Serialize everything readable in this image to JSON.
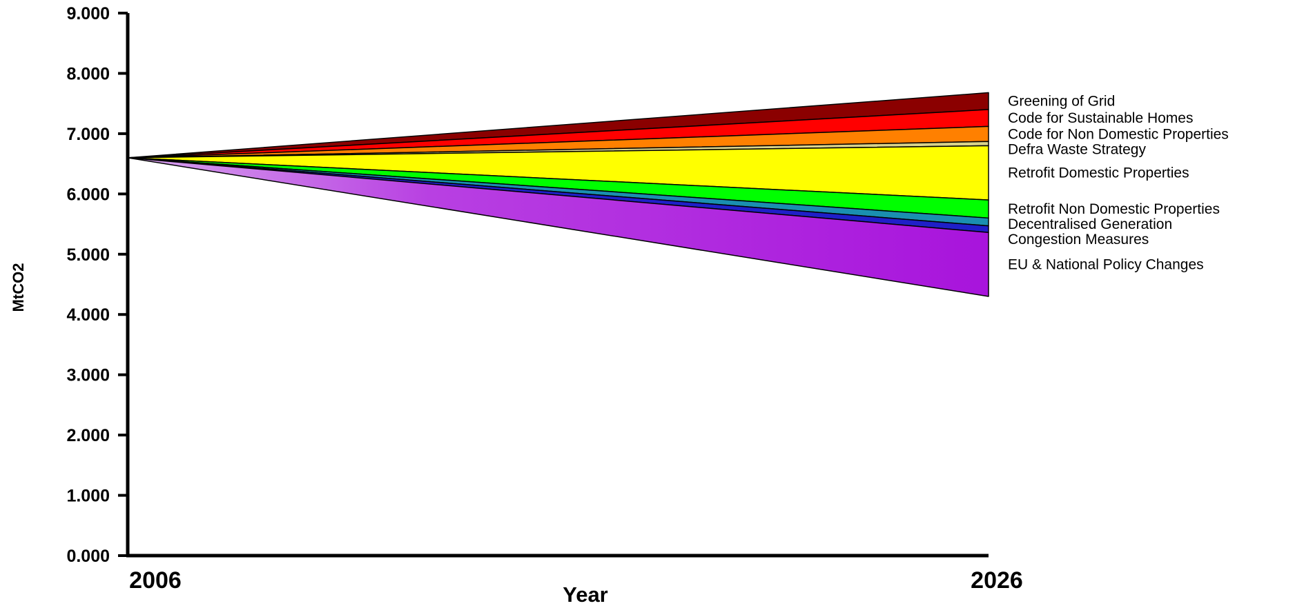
{
  "chart_data": {
    "type": "area",
    "xlabel": "Year",
    "ylabel": "MtCO2",
    "x": [
      2006,
      2026
    ],
    "x_tick_labels": [
      "2006",
      "2026"
    ],
    "ylim": [
      0,
      9
    ],
    "y_ticks": [
      0,
      1,
      2,
      3,
      4,
      5,
      6,
      7,
      8,
      9
    ],
    "y_tick_labels": [
      "0.000",
      "1.000",
      "2.000",
      "3.000",
      "4.000",
      "5.000",
      "6.000",
      "7.000",
      "8.000",
      "9.000"
    ],
    "grid": false,
    "legend": "labels at right end of each band",
    "start_value": 6.6,
    "series": [
      {
        "name": "Greening of Grid",
        "color": "#8b0000",
        "upper": [
          6.6,
          7.68
        ],
        "lower": [
          6.6,
          7.4
        ]
      },
      {
        "name": "Code for Sustainable Homes",
        "color": "#ff0000",
        "upper": [
          6.6,
          7.4
        ],
        "lower": [
          6.6,
          7.12
        ]
      },
      {
        "name": "Code for Non Domestic Properties",
        "color": "#ff8000",
        "upper": [
          6.6,
          7.12
        ],
        "lower": [
          6.6,
          6.87
        ]
      },
      {
        "name": "Defra Waste Strategy",
        "color": "#d9d28a",
        "upper": [
          6.6,
          6.87
        ],
        "lower": [
          6.6,
          6.8
        ]
      },
      {
        "name": "Retrofit Domestic Properties",
        "color": "#ffff00",
        "upper": [
          6.6,
          6.8
        ],
        "lower": [
          6.6,
          5.9
        ]
      },
      {
        "name": "Retrofit Non Domestic Properties",
        "color": "#00ff00",
        "upper": [
          6.6,
          5.9
        ],
        "lower": [
          6.6,
          5.6
        ]
      },
      {
        "name": "Decentralised Generation",
        "color": "#1a8fb0",
        "upper": [
          6.6,
          5.6
        ],
        "lower": [
          6.6,
          5.47
        ]
      },
      {
        "name": "Congestion Measures",
        "color": "#1f1fc8",
        "upper": [
          6.6,
          5.47
        ],
        "lower": [
          6.6,
          5.36
        ]
      },
      {
        "name": "EU & National Policy Changes",
        "color": "#a814dc",
        "upper": [
          6.6,
          5.36
        ],
        "lower": [
          6.6,
          4.3
        ]
      }
    ]
  }
}
